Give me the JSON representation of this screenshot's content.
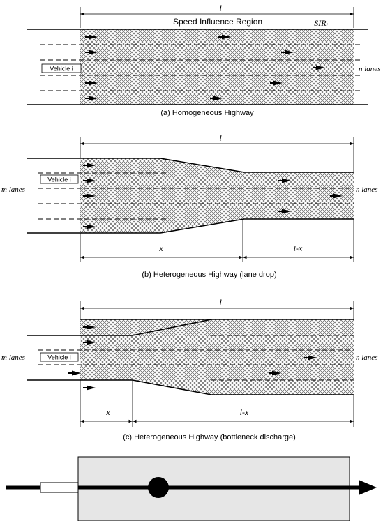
{
  "panel_a": {
    "length_label": "l",
    "region_label": "Speed Influence Region",
    "sir_label": "SIR",
    "sir_subscript": "i",
    "vehicle_label": "Vehicle i",
    "right_lanes_label": "n lanes",
    "caption": "(a) Homogeneous Highway"
  },
  "panel_b": {
    "length_label": "l",
    "left_lanes_label": "m lanes",
    "vehicle_label": "Vehicle i",
    "right_lanes_label": "n lanes",
    "x_label": "x",
    "lx_label": "l-x",
    "caption": "(b) Heterogeneous Highway (lane drop)"
  },
  "panel_c": {
    "length_label": "l",
    "left_lanes_label": "m lanes",
    "vehicle_label": "Vehicle i",
    "right_lanes_label": "n lanes",
    "x_label": "x",
    "lx_label": "l-x",
    "caption": "(c) Heterogeneous Highway (bottleneck discharge)"
  },
  "colors": {
    "hatch": "#6e6e6e",
    "region_fill": "#e6e6e6",
    "ink": "#000000"
  }
}
